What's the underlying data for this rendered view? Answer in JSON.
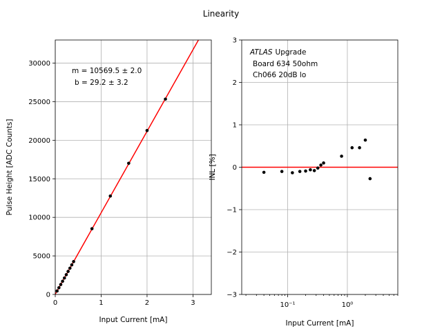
{
  "figure_title": "Linearity",
  "chart_data": [
    {
      "type": "scatter",
      "name": "pulse-height",
      "xlabel": "Input Current [mA]",
      "ylabel": "Pulse Height [ADC Counts]",
      "xlim": [
        0,
        3.4
      ],
      "ylim": [
        0,
        33000
      ],
      "xticks": [
        0,
        1,
        2,
        3
      ],
      "yticks": [
        0,
        5000,
        10000,
        15000,
        20000,
        25000,
        30000
      ],
      "grid": true,
      "fit": {
        "slope": 10569.5,
        "intercept": 29.2,
        "color": "#ff0000"
      },
      "annotations": [
        "m = 10569.5 ± 2.0",
        "b = 29.2 ± 3.2"
      ],
      "points": {
        "x": [
          0.04,
          0.08,
          0.12,
          0.16,
          0.2,
          0.24,
          0.28,
          0.32,
          0.36,
          0.4,
          0.8,
          1.2,
          1.6,
          2.0,
          2.4
        ],
        "y": [
          452,
          870,
          1287,
          1715,
          2136,
          2564,
          2986,
          3408,
          3839,
          4262,
          8527,
          12766,
          17010,
          21259,
          25332
        ]
      }
    },
    {
      "type": "scatter",
      "name": "inl",
      "xlabel": "Input Current [mA]",
      "ylabel": "INL [%]",
      "xscale": "log",
      "xlim": [
        0.017,
        7
      ],
      "ylim": [
        -3,
        3
      ],
      "xticks_major": [
        0.1,
        1
      ],
      "xtick_labels": [
        "10⁻¹",
        "10⁰"
      ],
      "yticks": [
        -3,
        -2,
        -1,
        0,
        1,
        2,
        3
      ],
      "ytick_labels": [
        "−3",
        "−2",
        "−1",
        "0",
        "1",
        "2",
        "3"
      ],
      "grid": true,
      "reference_line": {
        "y": 0,
        "color": "#ff0000"
      },
      "annotations": [
        "ATLAS",
        "Upgrade",
        "Board 634 50ohm",
        "Ch066 20dB lo"
      ],
      "points": {
        "x": [
          0.04,
          0.08,
          0.12,
          0.16,
          0.2,
          0.24,
          0.28,
          0.32,
          0.36,
          0.4,
          0.8,
          1.2,
          1.6,
          2.0,
          2.4
        ],
        "y": [
          -0.12,
          -0.1,
          -0.13,
          -0.1,
          -0.09,
          -0.06,
          -0.08,
          -0.02,
          0.05,
          0.1,
          0.26,
          0.46,
          0.46,
          0.64,
          -0.27
        ]
      }
    }
  ]
}
